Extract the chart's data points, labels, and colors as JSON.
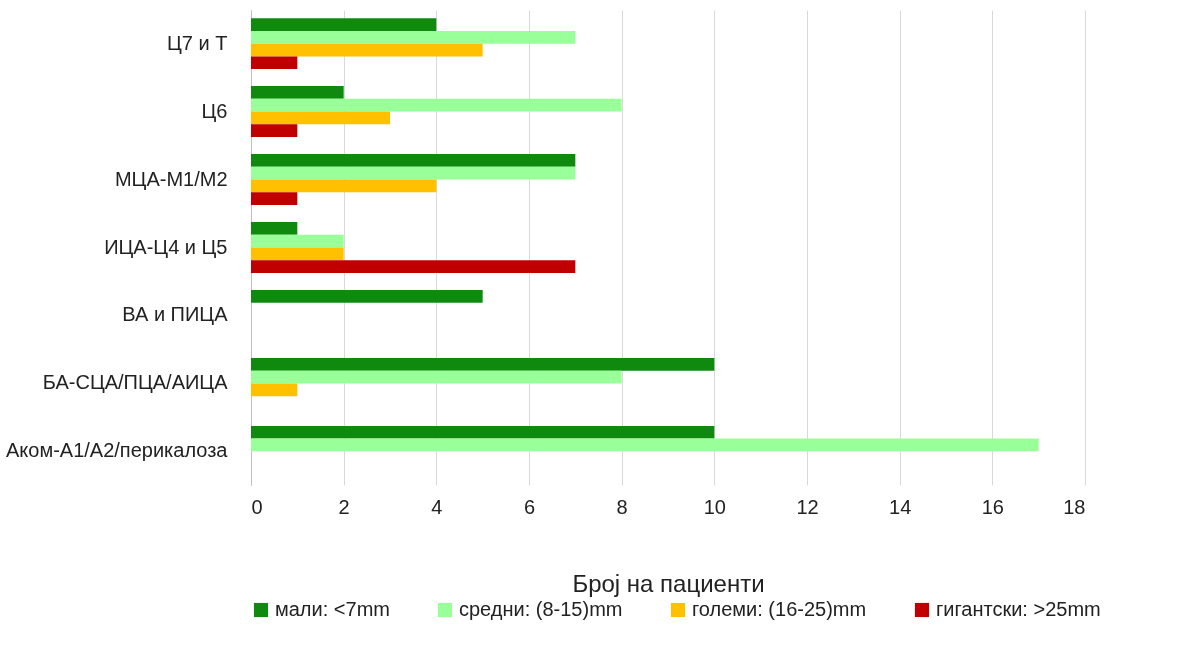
{
  "chart_data": {
    "type": "bar",
    "orientation": "horizontal",
    "xlabel": "Број на пациенти",
    "categories": [
      "Ц7 и Т",
      "Ц6",
      "МЦА-М1/М2",
      "ИЦА-Ц4 и Ц5",
      "ВА и ПИЦА",
      "БА-СЦА/ПЦА/АИЦА",
      "Аком-А1/А2/перикалоза"
    ],
    "series": [
      {
        "name": "мали: <7mm",
        "color": "#0f8a0f",
        "values": [
          4,
          2,
          7,
          1,
          5,
          10,
          10
        ]
      },
      {
        "name": "средни: (8-15)mm",
        "color": "#99ff99",
        "values": [
          7,
          8,
          7,
          2,
          0,
          8,
          17
        ]
      },
      {
        "name": "големи: (16-25)mm",
        "color": "#ffc000",
        "values": [
          5,
          3,
          4,
          2,
          0,
          1,
          0
        ]
      },
      {
        "name": "гигантски: >25mm",
        "color": "#c00000",
        "values": [
          1,
          1,
          1,
          7,
          0,
          0,
          0
        ]
      }
    ],
    "xlim": [
      0,
      18
    ],
    "xticks": [
      0,
      2,
      4,
      6,
      8,
      10,
      12,
      14,
      16,
      18
    ],
    "grid": "x",
    "legend": "bottom"
  }
}
